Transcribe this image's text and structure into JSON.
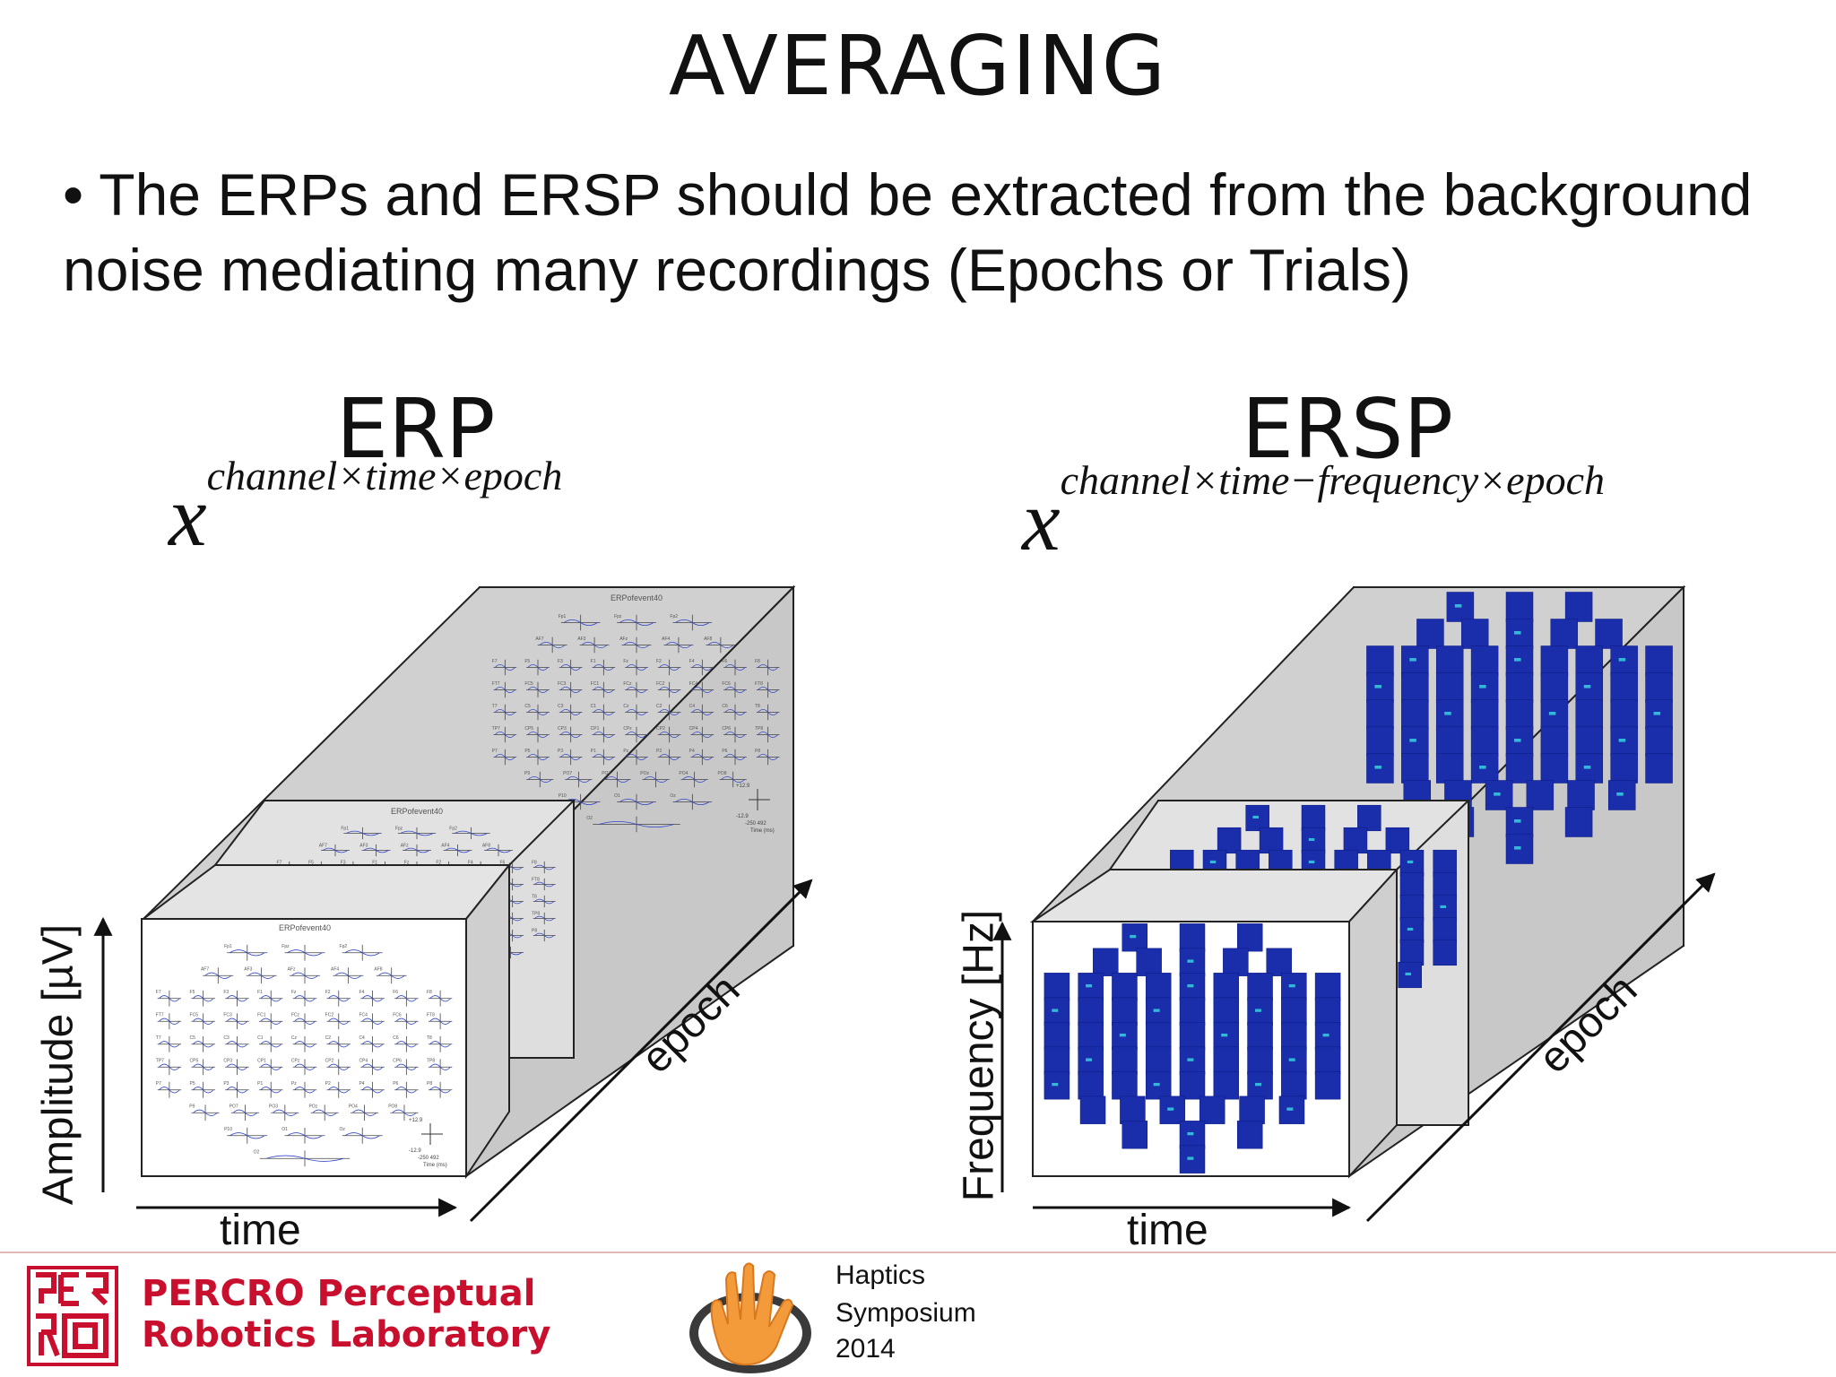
{
  "slide": {
    "title": "AVERAGING",
    "bullet": "• The ERPs and ERSP should be extracted from the background noise mediating many recordings (Epochs or Trials)"
  },
  "erp": {
    "heading": "ERP",
    "formula_base": "x",
    "formula_sup": "channel×time×epoch",
    "y_axis": "Amplitude [µV]",
    "x_axis": "time",
    "depth_axis": "epoch",
    "map_title": "ERPofevent40",
    "channels": [
      "Fp1",
      "Fpz",
      "Fp2",
      "AF7",
      "AF3",
      "AFz",
      "AF4",
      "AF8",
      "F7",
      "F5",
      "F3",
      "F1",
      "Fz",
      "F2",
      "F4",
      "F6",
      "F8",
      "FT7",
      "FC5",
      "FC3",
      "FC1",
      "FCz",
      "FC2",
      "FC4",
      "FC6",
      "FT8",
      "T7",
      "C5",
      "C3",
      "C1",
      "Cz",
      "C2",
      "C4",
      "C6",
      "T8",
      "TP7",
      "CP5",
      "CP3",
      "CP1",
      "CPz",
      "CP2",
      "CP4",
      "CP6",
      "TP8",
      "P7",
      "P5",
      "P3",
      "P1",
      "Pz",
      "P2",
      "P4",
      "P6",
      "P8",
      "P9",
      "PO7",
      "PO3",
      "POz",
      "PO4",
      "PO8",
      "P10",
      "O1",
      "Oz",
      "O2",
      "Iz"
    ],
    "scale_label": "+12.9",
    "scale_label_neg": "-12.9",
    "time_range": "-250  492",
    "time_unit": "Time (ms)"
  },
  "ersp": {
    "heading": "ERSP",
    "formula_base": "x",
    "formula_sup": "channel×time−frequency×epoch",
    "y_axis": "Frequency [Hz]",
    "x_axis": "time",
    "depth_axis": "epoch"
  },
  "footer": {
    "lab_line1": "PERCRO Perceptual",
    "lab_line2": "Robotics Laboratory",
    "symposium_line1": "Haptics",
    "symposium_line2": "Symposium",
    "symposium_line3": "2014"
  },
  "colors": {
    "brand_red": "#c8102e",
    "hand_orange": "#f39a3a",
    "tile_blue": "#1a2dab",
    "slab_gray": "#d9d9d9"
  }
}
